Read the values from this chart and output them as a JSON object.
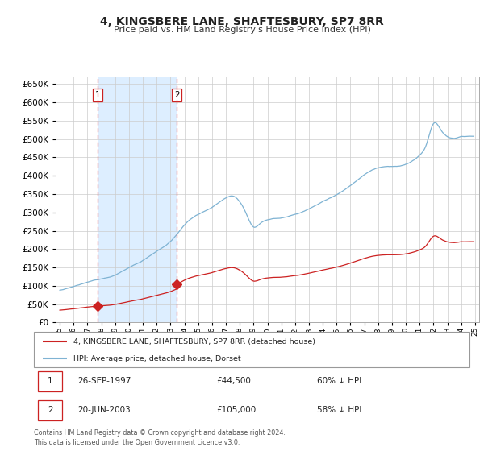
{
  "title": "4, KINGSBERE LANE, SHAFTESBURY, SP7 8RR",
  "subtitle": "Price paid vs. HM Land Registry's House Price Index (HPI)",
  "legend_house": "4, KINGSBERE LANE, SHAFTESBURY, SP7 8RR (detached house)",
  "legend_hpi": "HPI: Average price, detached house, Dorset",
  "house_color": "#cc2222",
  "hpi_color": "#7fb3d3",
  "shade_color": "#ddeeff",
  "transactions": [
    {
      "label": "1",
      "date": "26-SEP-1997",
      "price": 44500,
      "pct": "60% ↓ HPI",
      "x_year": 1997.73
    },
    {
      "label": "2",
      "date": "20-JUN-2003",
      "price": 105000,
      "pct": "58% ↓ HPI",
      "x_year": 2003.46
    }
  ],
  "footer": "Contains HM Land Registry data © Crown copyright and database right 2024.\nThis data is licensed under the Open Government Licence v3.0.",
  "ylim": [
    0,
    670000
  ],
  "yticks": [
    0,
    50000,
    100000,
    150000,
    200000,
    250000,
    300000,
    350000,
    400000,
    450000,
    500000,
    550000,
    600000,
    650000
  ],
  "xlim_start": 1994.7,
  "xlim_end": 2025.3,
  "hpi_ctrl_years": [
    1995,
    1996,
    1997,
    1998,
    1999,
    2000,
    2001,
    2002,
    2003,
    2004,
    2005,
    2006,
    2007,
    2007.5,
    2008,
    2008.5,
    2009,
    2009.5,
    2010,
    2011,
    2012,
    2013,
    2014,
    2015,
    2016,
    2017,
    2018,
    2019,
    2020,
    2021,
    2021.5,
    2022,
    2022.5,
    2023,
    2023.5,
    2024
  ],
  "hpi_ctrl_vals": [
    88000,
    97000,
    108000,
    118000,
    130000,
    150000,
    170000,
    195000,
    220000,
    265000,
    295000,
    315000,
    340000,
    345000,
    330000,
    295000,
    260000,
    270000,
    280000,
    285000,
    295000,
    310000,
    330000,
    350000,
    375000,
    405000,
    425000,
    430000,
    435000,
    460000,
    490000,
    545000,
    530000,
    510000,
    505000,
    510000
  ]
}
